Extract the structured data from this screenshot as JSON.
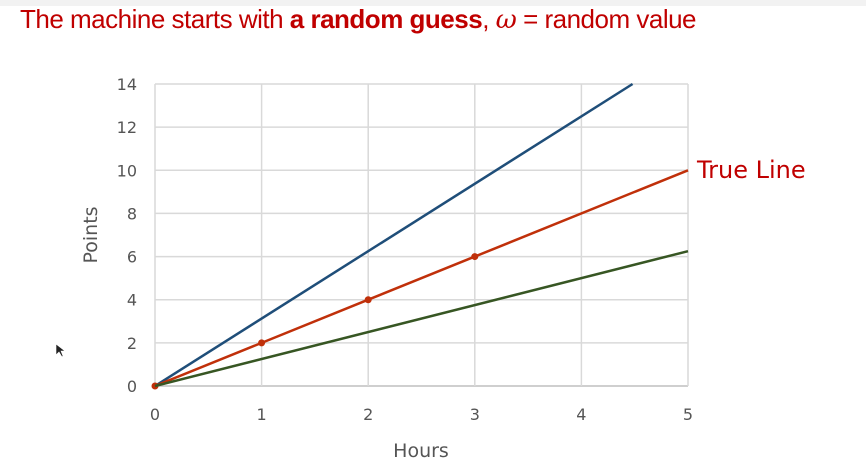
{
  "slide": {
    "title_prefix": "The machine starts with ",
    "title_bold": "a random guess",
    "title_comma": ", ",
    "title_symbol": "ω",
    "title_suffix": " = random value"
  },
  "chart_data": {
    "type": "line",
    "xlabel": "Hours",
    "ylabel": "Points",
    "xlim": [
      0,
      5
    ],
    "ylim": [
      0,
      14
    ],
    "xticks": [
      0,
      1,
      2,
      3,
      4,
      5
    ],
    "yticks": [
      0,
      2,
      4,
      6,
      8,
      10,
      12,
      14
    ],
    "grid": true,
    "series": [
      {
        "color": "#1f4e79",
        "x": [
          0,
          4.48
        ],
        "y": [
          0,
          14
        ],
        "markers": false
      },
      {
        "name": "True Line",
        "color": "#c0300a",
        "x": [
          0,
          1,
          2,
          3,
          5
        ],
        "y": [
          0,
          2,
          4,
          6,
          10
        ],
        "markers": true,
        "marker_x": [
          0,
          1,
          2,
          3
        ]
      },
      {
        "color": "#375623",
        "x": [
          0,
          5
        ],
        "y": [
          0,
          6.25
        ],
        "markers": false
      }
    ],
    "annotations": [
      {
        "text": "True Line",
        "color": "#c00000"
      }
    ]
  }
}
